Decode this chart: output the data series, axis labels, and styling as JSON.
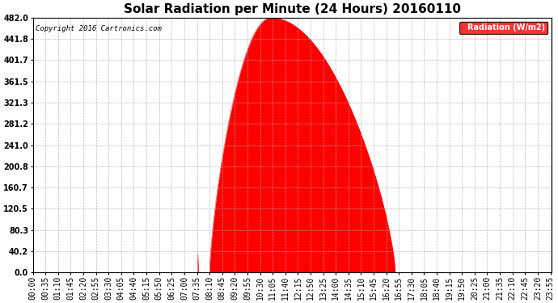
{
  "title": "Solar Radiation per Minute (24 Hours) 20160110",
  "copyright_text": "Copyright 2016 Cartronics.com",
  "legend_label": "Radiation (W/m2)",
  "yticks": [
    0.0,
    40.2,
    80.3,
    120.5,
    160.7,
    200.8,
    241.0,
    281.2,
    321.3,
    361.5,
    401.7,
    441.8,
    482.0
  ],
  "ymax": 482.0,
  "fill_color": "#FF0000",
  "line_color": "#FF0000",
  "legend_bg": "#FF0000",
  "legend_text_color": "#FFFFFF",
  "background_color": "#FFFFFF",
  "grid_color": "#AAAAAA",
  "zero_line_color": "#FF0000",
  "sunrise_minute": 490,
  "sunset_minute": 1005,
  "peak_minute": 660,
  "peak_value": 482.0,
  "total_minutes": 1440,
  "title_fontsize": 11,
  "axis_fontsize": 7,
  "small_spike_minute": 458,
  "small_spike_value": 35
}
